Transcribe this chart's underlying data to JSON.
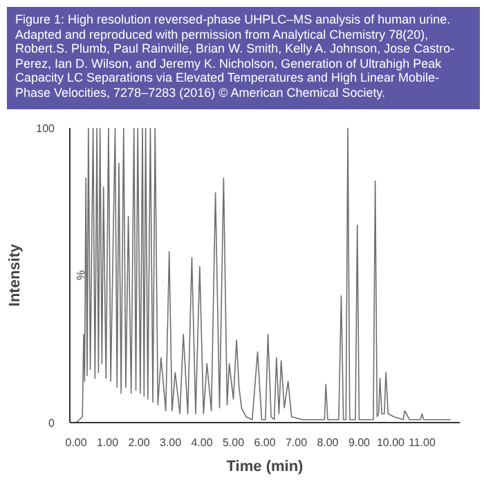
{
  "chart_data": {
    "type": "line",
    "title": "Figure 1: High resolution reversed-phase UHPLC–MS analysis of human urine. Adapted and reproduced with permission from Analytical Chemistry 78(20), Robert.S. Plumb, Paul Rainville, Brian W. Smith, Kelly A. Johnson, Jose Castro-Perez, Ian D. Wilson, and Jeremy K. Nicholson, Generation of Ultrahigh Peak Capacity LC Separations via Elevated Temperatures and High Linear Mobile-Phase Velocities, 7278–7283 (2016) © American Chemical Society.",
    "xlabel": "Time (min)",
    "ylabel": "Intensity",
    "annotations": [
      "%"
    ],
    "x": [
      0.0,
      0.2,
      0.24,
      0.27,
      0.31,
      0.35,
      0.39,
      0.45,
      0.54,
      0.6,
      0.66,
      0.71,
      0.76,
      0.82,
      0.87,
      0.95,
      1.03,
      1.1,
      1.24,
      1.3,
      1.36,
      1.43,
      1.51,
      1.58,
      1.66,
      1.75,
      1.84,
      1.9,
      1.96,
      2.04,
      2.11,
      2.16,
      2.21,
      2.28,
      2.36,
      2.44,
      2.51,
      2.6,
      2.7,
      2.85,
      2.96,
      3.05,
      3.15,
      3.3,
      3.41,
      3.55,
      3.68,
      3.8,
      3.93,
      4.05,
      4.16,
      4.3,
      4.43,
      4.56,
      4.69,
      4.8,
      4.87,
      5.0,
      5.1,
      5.18,
      5.26,
      5.4,
      5.6,
      5.77,
      5.9,
      6.02,
      6.1,
      6.2,
      6.3,
      6.37,
      6.45,
      6.52,
      6.62,
      6.74,
      6.85,
      7.2,
      7.6,
      7.9,
      7.94,
      8.0,
      8.35,
      8.43,
      8.5,
      8.58,
      8.64,
      8.7,
      8.88,
      8.94,
      9.0,
      9.45,
      9.51,
      9.57,
      9.62,
      9.66,
      9.72,
      9.8,
      9.85,
      9.92,
      10.1,
      10.4,
      10.45,
      10.6,
      10.95,
      11.0,
      11.05,
      11.9
    ],
    "series": [
      {
        "color": "#6e6e6e",
        "values": [
          0,
          2,
          30,
          14,
          83,
          16,
          100,
          18,
          100,
          15,
          100,
          17,
          100,
          20,
          80,
          15,
          100,
          14,
          100,
          12,
          88,
          10,
          100,
          12,
          70,
          10,
          100,
          11,
          100,
          10,
          100,
          9,
          100,
          8,
          100,
          7,
          100,
          6,
          22,
          4,
          58,
          4,
          17,
          3,
          30,
          3,
          56,
          3,
          53,
          3,
          20,
          4,
          78,
          5,
          83,
          6,
          20,
          8,
          28,
          12,
          5,
          2,
          1,
          24,
          1,
          1,
          30,
          2,
          1,
          22,
          3,
          21,
          5,
          14,
          2,
          1,
          1,
          1,
          13,
          1,
          1,
          43,
          1,
          1,
          100,
          1,
          1,
          67,
          1,
          1,
          82,
          2,
          3,
          15,
          3,
          3,
          17,
          3,
          2,
          1,
          4,
          1,
          1,
          3,
          1,
          1
        ]
      }
    ],
    "xlim": [
      -0.2,
      12.2
    ],
    "ylim": [
      0,
      100
    ],
    "xticks": [
      {
        "value": 0,
        "label": "0.00"
      },
      {
        "value": 1,
        "label": "1.00"
      },
      {
        "value": 2,
        "label": "2.00"
      },
      {
        "value": 3,
        "label": "3.00"
      },
      {
        "value": 4,
        "label": "4.00"
      },
      {
        "value": 5,
        "label": "5.00"
      },
      {
        "value": 6,
        "label": "6.00"
      },
      {
        "value": 7,
        "label": "7.00"
      },
      {
        "value": 8,
        "label": "8.00"
      },
      {
        "value": 9,
        "label": "9.00"
      },
      {
        "value": 10,
        "label": "10.00"
      },
      {
        "value": 11,
        "label": "11.00"
      }
    ],
    "yticks": [
      0,
      100
    ],
    "grid": false,
    "line_style": "solid"
  }
}
